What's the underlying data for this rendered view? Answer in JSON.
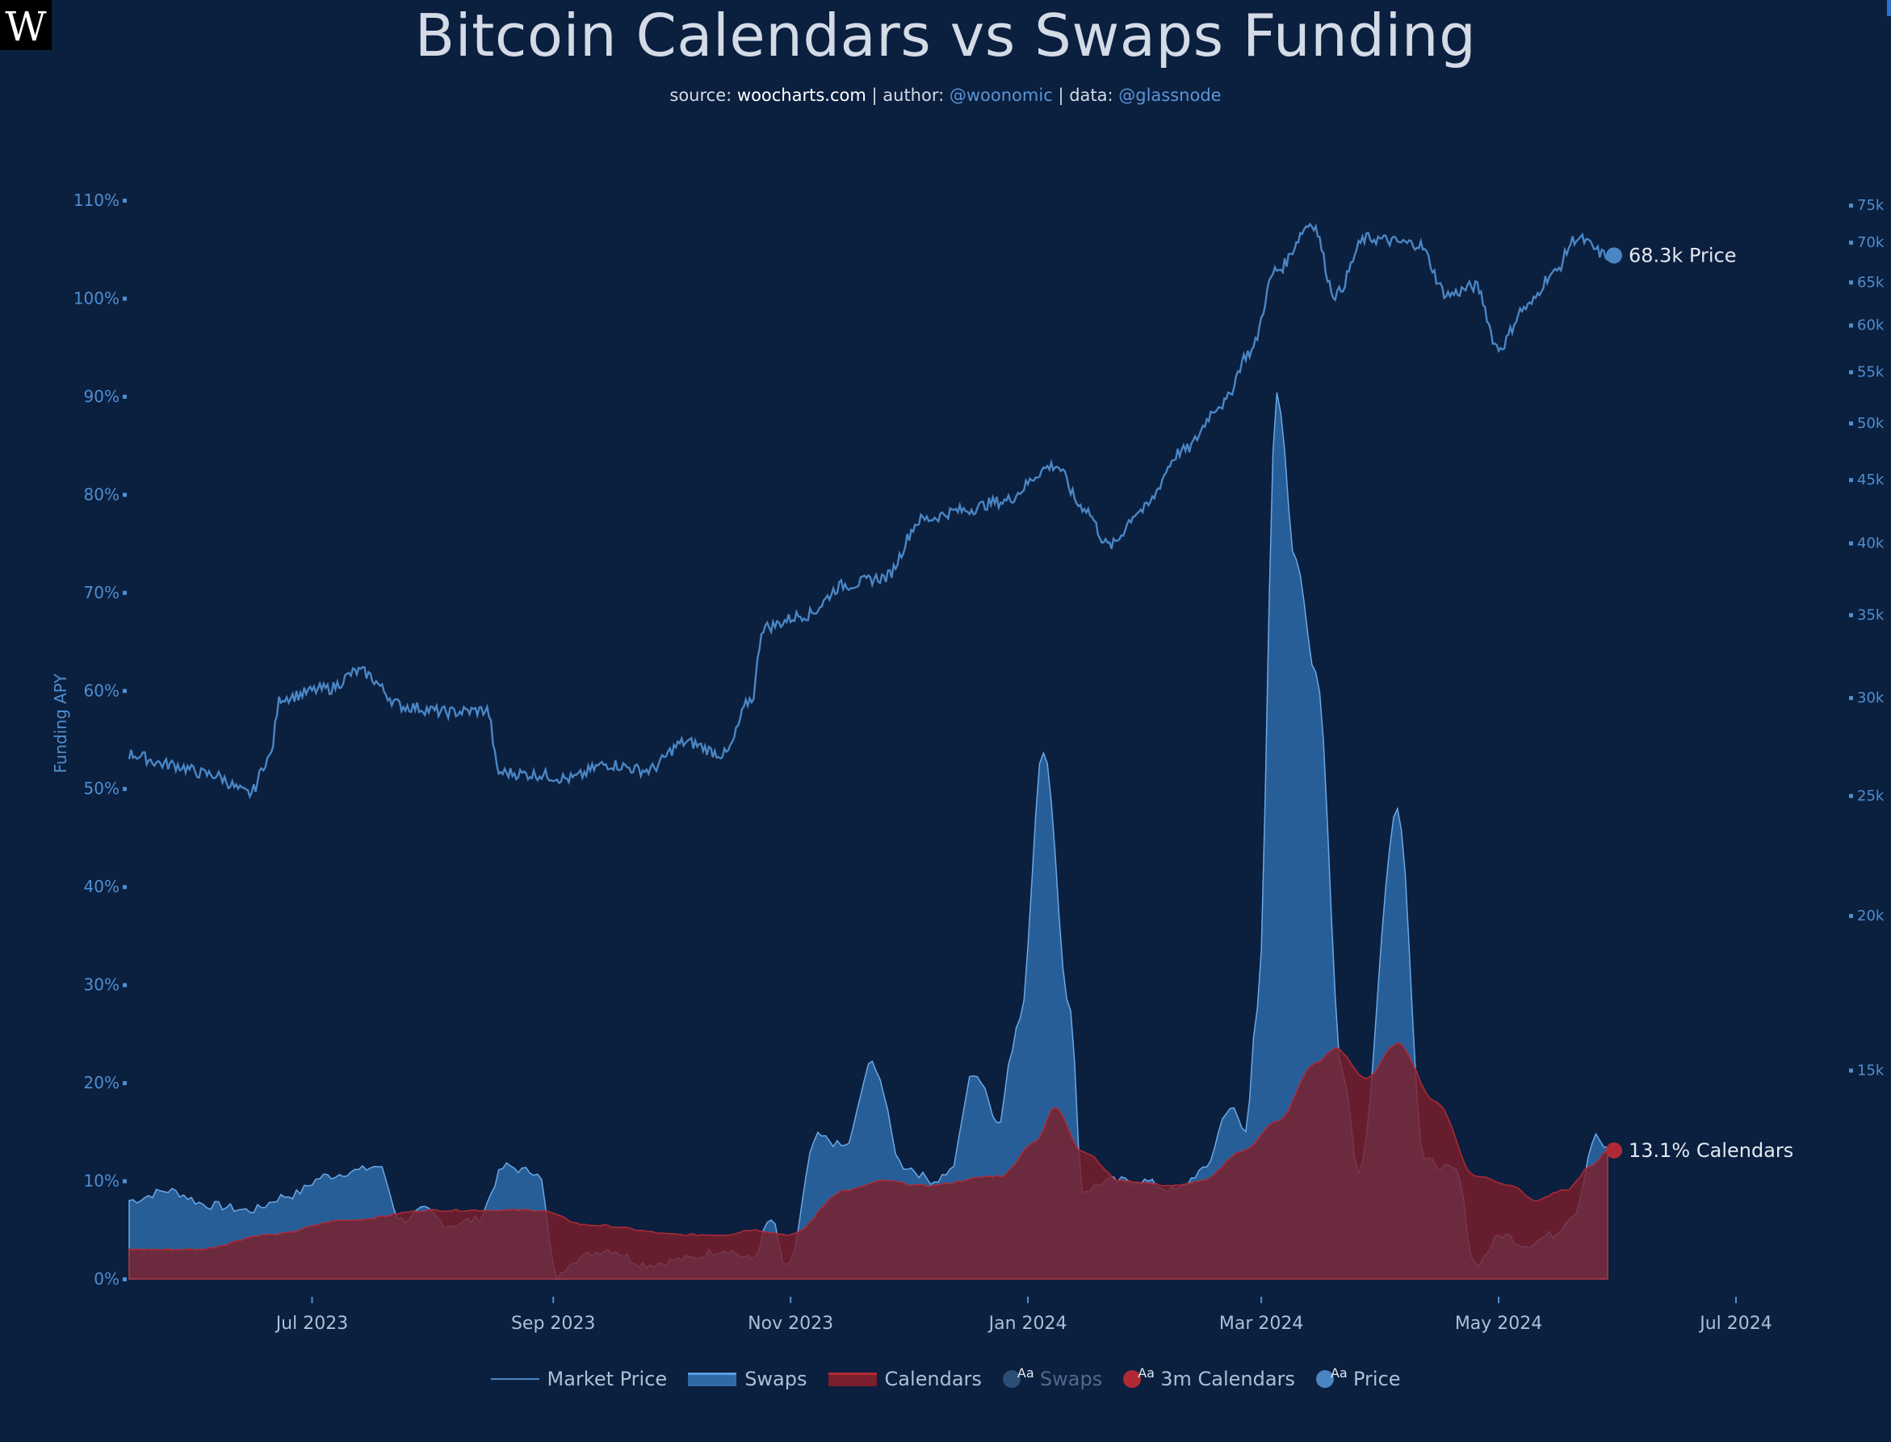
{
  "logo": "W",
  "header": {
    "title": "Bitcoin Calendars vs Swaps Funding",
    "subtitle": {
      "source_label": "source:",
      "source": "woocharts.com",
      "author_label": "| author:",
      "author": "@woonomic",
      "data_label": "| data:",
      "data": "@glassnode"
    }
  },
  "legend": {
    "market_price": "Market Price",
    "swaps": "Swaps",
    "calendars": "Calendars",
    "swaps_marker": "Swaps",
    "calendars_marker": "3m Calendars",
    "price_marker": "Price",
    "marker_glyph": "Aa"
  },
  "end_labels": {
    "price": "68.3k Price",
    "calendars": "13.1% Calendars"
  },
  "colors": {
    "background": "#0b1f3f",
    "swaps_fill": "#2e6aa8",
    "swaps_line": "#6aa8e6",
    "calendars_fill": "#7a1f2b",
    "calendars_line": "#b02a35",
    "price_line": "#4a86c4",
    "axis_text": "#4f8fd0"
  },
  "chart_data": {
    "type": "area",
    "title": "Bitcoin Calendars vs Swaps Funding",
    "ylabel": "Funding APY",
    "ylim": [
      0,
      110
    ],
    "y2lim": [
      12000,
      78000
    ],
    "y2_scale": "log",
    "x_range": [
      "2023-05-15",
      "2024-07-01"
    ],
    "x_ticks": [
      {
        "date": "2023-07-01",
        "label": "Jul 2023"
      },
      {
        "date": "2023-09-01",
        "label": "Sep 2023"
      },
      {
        "date": "2023-11-01",
        "label": "Nov 2023"
      },
      {
        "date": "2024-01-01",
        "label": "Jan 2024"
      },
      {
        "date": "2024-03-01",
        "label": "Mar 2024"
      },
      {
        "date": "2024-05-01",
        "label": "May 2024"
      },
      {
        "date": "2024-07-01",
        "label": "Jul 2024"
      }
    ],
    "y_ticks": [
      {
        "v": 0,
        "label": "0%"
      },
      {
        "v": 10,
        "label": "10%"
      },
      {
        "v": 20,
        "label": "20%"
      },
      {
        "v": 30,
        "label": "30%"
      },
      {
        "v": 40,
        "label": "40%"
      },
      {
        "v": 50,
        "label": "50%"
      },
      {
        "v": 60,
        "label": "60%"
      },
      {
        "v": 70,
        "label": "70%"
      },
      {
        "v": 80,
        "label": "80%"
      },
      {
        "v": 90,
        "label": "90%"
      },
      {
        "v": 100,
        "label": "100%"
      },
      {
        "v": 110,
        "label": "110%"
      }
    ],
    "y2_ticks": [
      {
        "v": 15000,
        "label": "15k"
      },
      {
        "v": 20000,
        "label": "20k"
      },
      {
        "v": 25000,
        "label": "25k"
      },
      {
        "v": 30000,
        "label": "30k"
      },
      {
        "v": 35000,
        "label": "35k"
      },
      {
        "v": 40000,
        "label": "40k"
      },
      {
        "v": 45000,
        "label": "45k"
      },
      {
        "v": 50000,
        "label": "50k"
      },
      {
        "v": 55000,
        "label": "55k"
      },
      {
        "v": 60000,
        "label": "60k"
      },
      {
        "v": 65000,
        "label": "65k"
      },
      {
        "v": 70000,
        "label": "70k"
      },
      {
        "v": 75000,
        "label": "75k"
      }
    ],
    "series": [
      {
        "name": "Swaps",
        "axis": "left",
        "points": [
          [
            "2023-05-15",
            8
          ],
          [
            "2023-05-25",
            9
          ],
          [
            "2023-06-05",
            7.5
          ],
          [
            "2023-06-15",
            7
          ],
          [
            "2023-06-25",
            8.5
          ],
          [
            "2023-07-05",
            10.5
          ],
          [
            "2023-07-12",
            11
          ],
          [
            "2023-07-18",
            11.5
          ],
          [
            "2023-07-24",
            6
          ],
          [
            "2023-07-30",
            7
          ],
          [
            "2023-08-05",
            5.5
          ],
          [
            "2023-08-12",
            6
          ],
          [
            "2023-08-20",
            11.5
          ],
          [
            "2023-08-25",
            11
          ],
          [
            "2023-08-28",
            11
          ],
          [
            "2023-09-02",
            0
          ],
          [
            "2023-09-06",
            2
          ],
          [
            "2023-09-15",
            3
          ],
          [
            "2023-09-25",
            1.5
          ],
          [
            "2023-10-05",
            2
          ],
          [
            "2023-10-15",
            3
          ],
          [
            "2023-10-22",
            2
          ],
          [
            "2023-10-27",
            6
          ],
          [
            "2023-10-31",
            1
          ],
          [
            "2023-11-08",
            14.5
          ],
          [
            "2023-11-15",
            13.5
          ],
          [
            "2023-11-22",
            22
          ],
          [
            "2023-11-30",
            11.5
          ],
          [
            "2023-12-08",
            10
          ],
          [
            "2023-12-12",
            11
          ],
          [
            "2023-12-18",
            21
          ],
          [
            "2023-12-25",
            16
          ],
          [
            "2023-12-27",
            22
          ],
          [
            "2023-12-30",
            27
          ],
          [
            "2024-01-05",
            54
          ],
          [
            "2024-01-12",
            27
          ],
          [
            "2024-01-15",
            9
          ],
          [
            "2024-01-22",
            10
          ],
          [
            "2024-01-30",
            10
          ],
          [
            "2024-02-08",
            9
          ],
          [
            "2024-02-15",
            11
          ],
          [
            "2024-02-22",
            17.5
          ],
          [
            "2024-02-26",
            15
          ],
          [
            "2024-02-29",
            28
          ],
          [
            "2024-03-05",
            90
          ],
          [
            "2024-03-10",
            73
          ],
          [
            "2024-03-15",
            62
          ],
          [
            "2024-03-22",
            21
          ],
          [
            "2024-03-26",
            11
          ],
          [
            "2024-04-05",
            48
          ],
          [
            "2024-04-12",
            12
          ],
          [
            "2024-04-20",
            11
          ],
          [
            "2024-04-25",
            1.5
          ],
          [
            "2024-05-02",
            4.5
          ],
          [
            "2024-05-08",
            3.5
          ],
          [
            "2024-05-15",
            4.5
          ],
          [
            "2024-05-20",
            6.5
          ],
          [
            "2024-05-26",
            14.5
          ],
          [
            "2024-05-29",
            13.1
          ]
        ]
      },
      {
        "name": "Calendars",
        "axis": "left",
        "points": [
          [
            "2023-05-15",
            3
          ],
          [
            "2023-06-01",
            3
          ],
          [
            "2023-06-20",
            4.5
          ],
          [
            "2023-07-10",
            6
          ],
          [
            "2023-08-01",
            7
          ],
          [
            "2023-08-28",
            7
          ],
          [
            "2023-09-10",
            5.5
          ],
          [
            "2023-10-05",
            4.5
          ],
          [
            "2023-10-15",
            4.5
          ],
          [
            "2023-10-22",
            5
          ],
          [
            "2023-11-01",
            4.5
          ],
          [
            "2023-11-15",
            9
          ],
          [
            "2023-11-25",
            10
          ],
          [
            "2023-12-05",
            9.5
          ],
          [
            "2023-12-25",
            10.5
          ],
          [
            "2024-01-03",
            14
          ],
          [
            "2024-01-08",
            17.5
          ],
          [
            "2024-01-15",
            13
          ],
          [
            "2024-01-25",
            10
          ],
          [
            "2024-02-08",
            9.5
          ],
          [
            "2024-02-15",
            10
          ],
          [
            "2024-02-25",
            13
          ],
          [
            "2024-03-05",
            16
          ],
          [
            "2024-03-15",
            22
          ],
          [
            "2024-03-20",
            23.5
          ],
          [
            "2024-03-28",
            20.5
          ],
          [
            "2024-04-05",
            24
          ],
          [
            "2024-04-15",
            18
          ],
          [
            "2024-04-25",
            10.5
          ],
          [
            "2024-05-05",
            9.5
          ],
          [
            "2024-05-10",
            8
          ],
          [
            "2024-05-18",
            9
          ],
          [
            "2024-05-25",
            11.5
          ],
          [
            "2024-05-29",
            13.1
          ]
        ]
      },
      {
        "name": "Market Price",
        "axis": "right",
        "points": [
          [
            "2023-05-15",
            27000
          ],
          [
            "2023-05-25",
            26500
          ],
          [
            "2023-06-05",
            26000
          ],
          [
            "2023-06-15",
            25100
          ],
          [
            "2023-06-20",
            26800
          ],
          [
            "2023-06-23",
            30000
          ],
          [
            "2023-07-05",
            30500
          ],
          [
            "2023-07-13",
            31500
          ],
          [
            "2023-07-25",
            29500
          ],
          [
            "2023-08-05",
            29200
          ],
          [
            "2023-08-15",
            29300
          ],
          [
            "2023-08-18",
            26100
          ],
          [
            "2023-08-28",
            26000
          ],
          [
            "2023-09-05",
            25800
          ],
          [
            "2023-09-15",
            26500
          ],
          [
            "2023-09-25",
            26200
          ],
          [
            "2023-10-05",
            27600
          ],
          [
            "2023-10-15",
            27000
          ],
          [
            "2023-10-22",
            29900
          ],
          [
            "2023-10-25",
            34200
          ],
          [
            "2023-11-05",
            35000
          ],
          [
            "2023-11-15",
            37000
          ],
          [
            "2023-11-25",
            37500
          ],
          [
            "2023-12-05",
            41800
          ],
          [
            "2023-12-15",
            42500
          ],
          [
            "2023-12-25",
            43200
          ],
          [
            "2024-01-08",
            46200
          ],
          [
            "2024-01-15",
            42800
          ],
          [
            "2024-01-22",
            39800
          ],
          [
            "2024-01-30",
            42500
          ],
          [
            "2024-02-10",
            47500
          ],
          [
            "2024-02-20",
            51800
          ],
          [
            "2024-02-27",
            57000
          ],
          [
            "2024-03-05",
            66500
          ],
          [
            "2024-03-14",
            72500
          ],
          [
            "2024-03-20",
            63500
          ],
          [
            "2024-03-28",
            70500
          ],
          [
            "2024-04-10",
            69800
          ],
          [
            "2024-04-18",
            63500
          ],
          [
            "2024-04-25",
            64500
          ],
          [
            "2024-05-01",
            57500
          ],
          [
            "2024-05-08",
            62000
          ],
          [
            "2024-05-15",
            66000
          ],
          [
            "2024-05-21",
            70500
          ],
          [
            "2024-05-29",
            68300
          ]
        ]
      }
    ]
  }
}
